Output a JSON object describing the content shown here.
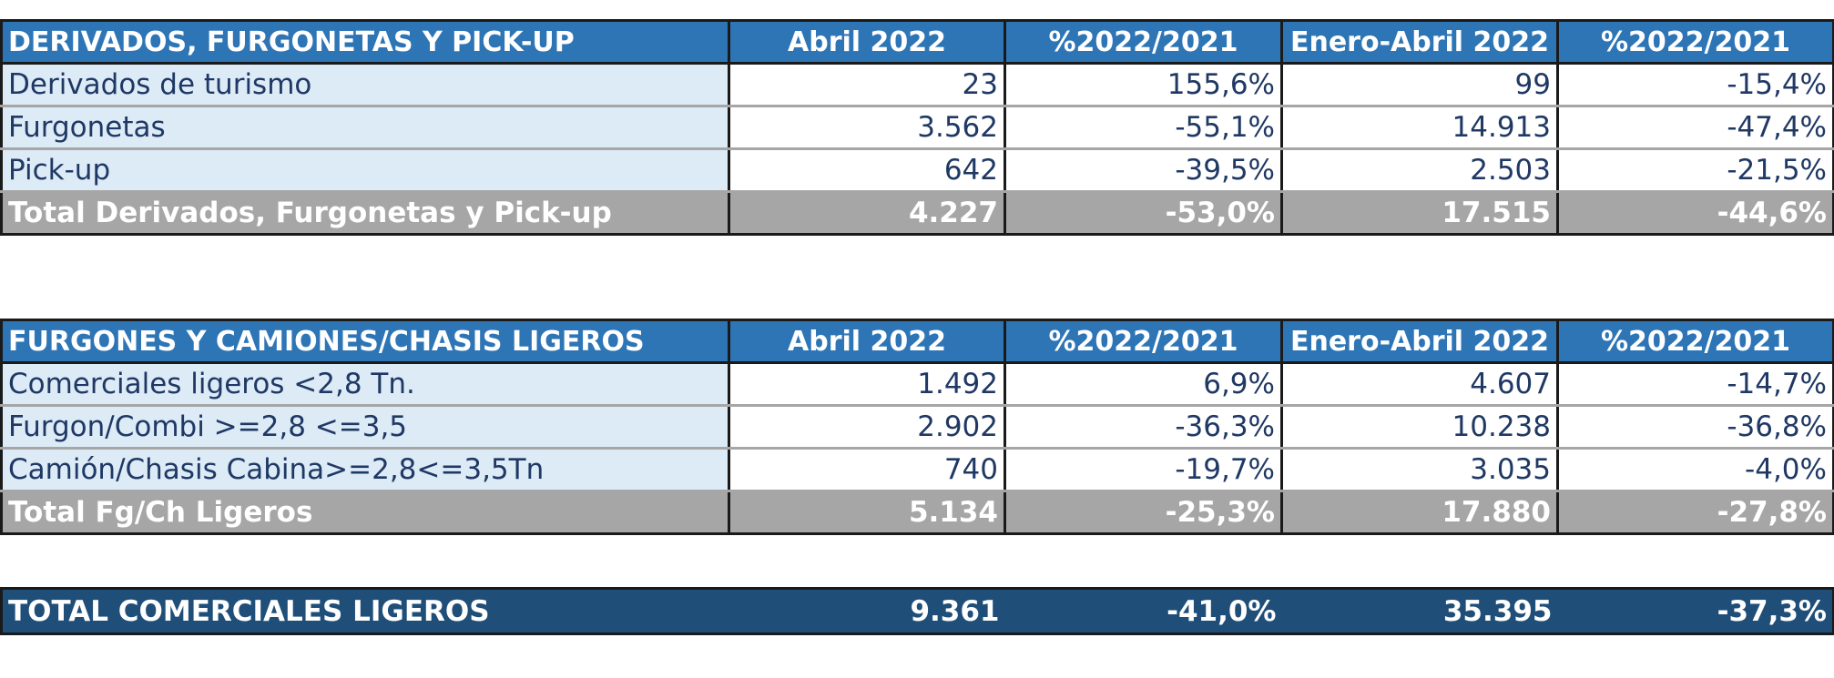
{
  "table1": {
    "header": [
      "DERIVADOS, FURGONETAS Y PICK-UP",
      "Abril 2022",
      "%2022/2021",
      "Enero-Abril 2022",
      "%2022/2021"
    ],
    "rows": [
      [
        "Derivados de turismo",
        "23",
        "155,6%",
        "99",
        "-15,4%"
      ],
      [
        "Furgonetas",
        "3.562",
        "-55,1%",
        "14.913",
        "-47,4%"
      ],
      [
        "Pick-up",
        "642",
        "-39,5%",
        "2.503",
        "-21,5%"
      ]
    ],
    "total": [
      "Total Derivados, Furgonetas y Pick-up",
      "4.227",
      "-53,0%",
      "17.515",
      "-44,6%"
    ]
  },
  "table2": {
    "header": [
      "FURGONES Y CAMIONES/CHASIS LIGEROS",
      "Abril 2022",
      "%2022/2021",
      "Enero-Abril 2022",
      "%2022/2021"
    ],
    "rows": [
      [
        "Comerciales ligeros <2,8 Tn.",
        "1.492",
        "6,9%",
        "4.607",
        "-14,7%"
      ],
      [
        "Furgon/Combi >=2,8 <=3,5",
        "2.902",
        "-36,3%",
        "10.238",
        "-36,8%"
      ],
      [
        "Camión/Chasis Cabina>=2,8<=3,5Tn",
        "740",
        "-19,7%",
        "3.035",
        "-4,0%"
      ]
    ],
    "total": [
      "Total Fg/Ch Ligeros",
      "5.134",
      "-25,3%",
      "17.880",
      "-27,8%"
    ]
  },
  "grand_total": [
    "TOTAL COMERCIALES LIGEROS",
    "9.361",
    "-41,0%",
    "35.395",
    "-37,3%"
  ],
  "colors": {
    "header_blue": "#2e75b6",
    "label_light_blue": "#ddebf7",
    "total_gray": "#a6a6a6",
    "grand_total_navy": "#1f4e79",
    "text_navy": "#1f3864"
  }
}
